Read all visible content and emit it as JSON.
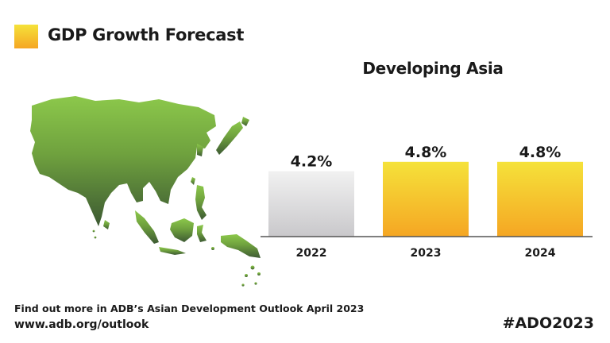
{
  "header": {
    "title": "GDP Growth Forecast",
    "subtitle": "Developing Asia"
  },
  "footer": {
    "line": "Find out more in ADB’s Asian Development Outlook April 2023",
    "url": "www.adb.org/outlook",
    "hashtag": "#ADO2023"
  },
  "colors": {
    "actual_bar_top": "#f1f1f1",
    "actual_bar_bottom": "#c9c8cb",
    "forecast_bar_top": "#f5e23a",
    "forecast_bar_bottom": "#f5a623",
    "map_light": "#8cc84b",
    "map_dark": "#3d5a33"
  },
  "chart_data": {
    "type": "bar",
    "title": "Developing Asia",
    "categories": [
      "2022",
      "2023",
      "2024"
    ],
    "values": [
      4.2,
      4.8,
      4.8
    ],
    "value_labels": [
      "4.2%",
      "4.8%",
      "4.8%"
    ],
    "unit": "%",
    "ylim": [
      0,
      5.3
    ],
    "grid": false,
    "legend": "top-left"
  }
}
